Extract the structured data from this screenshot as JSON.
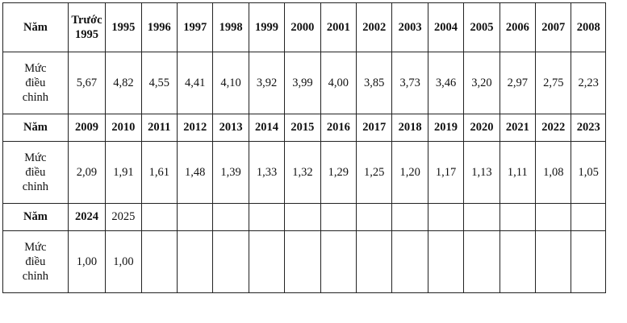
{
  "table": {
    "year_label": "Năm",
    "rate_label": "Mức\nđiều\nchỉnh",
    "sections": [
      {
        "years": [
          "Trước\n1995",
          "1995",
          "1996",
          "1997",
          "1998",
          "1999",
          "2000",
          "2001",
          "2002",
          "2003",
          "2004",
          "2005",
          "2006",
          "2007",
          "2008"
        ],
        "rates": [
          "5,67",
          "4,82",
          "4,55",
          "4,41",
          "4,10",
          "3,92",
          "3,99",
          "4,00",
          "3,85",
          "3,73",
          "3,46",
          "3,20",
          "2,97",
          "2,75",
          "2,23"
        ]
      },
      {
        "years": [
          "2009",
          "2010",
          "2011",
          "2012",
          "2013",
          "2014",
          "2015",
          "2016",
          "2017",
          "2018",
          "2019",
          "2020",
          "2021",
          "2022",
          "2023"
        ],
        "rates": [
          "2,09",
          "1,91",
          "1,61",
          "1,48",
          "1,39",
          "1,33",
          "1,32",
          "1,29",
          "1,25",
          "1,20",
          "1,17",
          "1,13",
          "1,11",
          "1,08",
          "1,05"
        ]
      },
      {
        "years": [
          "2024",
          "2025",
          "",
          "",
          "",
          "",
          "",
          "",
          "",
          "",
          "",
          "",
          "",
          "",
          ""
        ],
        "rates": [
          "1,00",
          "1,00",
          "",
          "",
          "",
          "",
          "",
          "",
          "",
          "",
          "",
          "",
          "",
          "",
          ""
        ]
      }
    ]
  }
}
